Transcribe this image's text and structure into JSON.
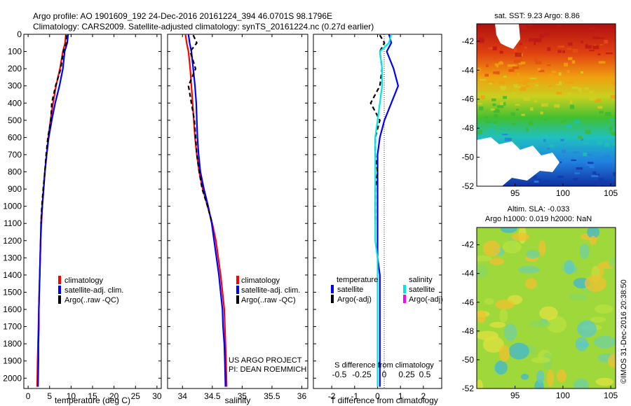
{
  "header": {
    "line1": "Argo profile: AO 1901609_192 24-Dec-2016 20161224_394 46.0701S 98.1796E",
    "line2": "Climatology: CARS2009. Satellite-adjusted climatology: synTS_20161224.nc (0.27d earlier)"
  },
  "colors": {
    "climatology": "#ff0000",
    "satellite": "#0000ff",
    "argo": "#000000",
    "satellite_salinity": "#00e5e5",
    "argo_salinity_adj": "#ff00ff"
  },
  "panels": {
    "temperature": {
      "xlabel": "temperature (deg C)",
      "legend": [
        "climatology",
        "satellite-adj. clim.",
        "Argo(..raw -QC)"
      ]
    },
    "salinity": {
      "xlabel": "salinity",
      "legend": [
        "climatology",
        "satellite-adj. clim.",
        "Argo(..raw -QC)"
      ],
      "credit1": "US ARGO PROJECT",
      "credit2": "PI: DEAN ROEMMICH"
    },
    "difference": {
      "xlabel": "T difference from climatology",
      "toplabel": "S difference from climatology",
      "legend_head_t": "temperature",
      "legend_head_s": "salinity",
      "legend_t": [
        "satellite",
        "Argo(-adj)"
      ],
      "legend_s": [
        "satellite",
        "Argo(-adj)"
      ]
    }
  },
  "maps": {
    "sst_title": "sat. SST: 9.23 Argo: 8.86",
    "sla_title1": "Altim. SLA: -0.033",
    "sla_title2": "Argo h1000: 0.019 h2000: NaN",
    "lat_ticks": [
      "-42",
      "-44",
      "-46",
      "-48",
      "-50",
      "-52"
    ],
    "lon_ticks": [
      "95",
      "100",
      "105"
    ],
    "side_text": "©IMOS 31-Dec-2016 20:38:50"
  },
  "chart_data": [
    {
      "type": "line",
      "title": "",
      "xlabel": "temperature (deg C)",
      "ylabel": "",
      "xlim": [
        -1,
        31
      ],
      "ylim": [
        2060,
        0
      ],
      "y_reversed": true,
      "xticks": [
        0,
        5,
        10,
        15,
        20,
        25,
        30
      ],
      "yticks": [
        0,
        100,
        200,
        300,
        400,
        500,
        600,
        700,
        800,
        900,
        1000,
        1100,
        1200,
        1300,
        1400,
        1500,
        1600,
        1700,
        1800,
        1900,
        2000
      ],
      "series": [
        {
          "name": "climatology",
          "color": "#ff0000",
          "x": [
            8.8,
            8.6,
            8.1,
            7.4,
            6.5,
            5.8,
            5.2,
            4.7,
            4.3,
            3.9,
            3.6,
            3.3,
            3.1,
            2.9,
            2.8,
            2.7,
            2.6,
            2.5,
            2.4,
            2.3,
            2.2,
            2.1
          ],
          "y": [
            0,
            50,
            100,
            200,
            300,
            400,
            500,
            600,
            700,
            800,
            900,
            1000,
            1100,
            1200,
            1300,
            1400,
            1500,
            1600,
            1700,
            1800,
            1900,
            2050
          ]
        },
        {
          "name": "satellite-adj. clim.",
          "color": "#0000ff",
          "x": [
            9.3,
            9.1,
            8.5,
            8.1,
            7.3,
            6.3,
            5.5,
            4.8,
            4.3,
            3.9,
            3.6,
            3.3,
            3.0,
            2.9,
            2.8,
            2.7,
            2.6,
            2.5,
            2.5,
            2.4,
            2.4,
            2.3
          ],
          "y": [
            0,
            50,
            100,
            200,
            300,
            400,
            500,
            600,
            700,
            800,
            900,
            1000,
            1100,
            1200,
            1300,
            1400,
            1500,
            1600,
            1700,
            1800,
            1900,
            2050
          ]
        },
        {
          "name": "Argo(..raw -QC)",
          "color": "#000000",
          "dashed": true,
          "x": [
            8.9,
            8.9,
            8.2,
            7.6,
            6.4,
            5.5,
            5.3,
            4.6,
            4.2,
            3.9,
            3.5,
            3.2,
            3.0
          ],
          "y": [
            5,
            50,
            100,
            200,
            300,
            400,
            500,
            600,
            700,
            800,
            900,
            1000,
            1100
          ]
        }
      ]
    },
    {
      "type": "line",
      "title": "",
      "xlabel": "salinity",
      "ylabel": "",
      "xlim": [
        33.75,
        36.1
      ],
      "ylim": [
        2060,
        0
      ],
      "y_reversed": true,
      "xticks": [
        34,
        34.5,
        35,
        35.5,
        36
      ],
      "series": [
        {
          "name": "climatology",
          "color": "#ff0000",
          "x": [
            34.05,
            34.07,
            34.1,
            34.13,
            34.15,
            34.17,
            34.19,
            34.21,
            34.24,
            34.28,
            34.34,
            34.42,
            34.5,
            34.56,
            34.6,
            34.64,
            34.67,
            34.7,
            34.71,
            34.72,
            34.73,
            34.74
          ],
          "y": [
            0,
            50,
            100,
            200,
            300,
            400,
            500,
            600,
            700,
            800,
            900,
            1000,
            1100,
            1200,
            1300,
            1400,
            1500,
            1600,
            1700,
            1800,
            1900,
            2050
          ]
        },
        {
          "name": "satellite-adj. clim.",
          "color": "#0000ff",
          "x": [
            34.1,
            34.12,
            34.15,
            34.18,
            34.21,
            34.23,
            34.24,
            34.25,
            34.27,
            34.3,
            34.36,
            34.43,
            34.49,
            34.53,
            34.57,
            34.61,
            34.64,
            34.67,
            34.68,
            34.7,
            34.71,
            34.72
          ],
          "y": [
            0,
            50,
            100,
            200,
            300,
            400,
            500,
            600,
            700,
            800,
            900,
            1000,
            1100,
            1200,
            1300,
            1400,
            1500,
            1600,
            1700,
            1800,
            1900,
            2050
          ]
        },
        {
          "name": "Argo(..raw -QC)",
          "color": "#000000",
          "dashed": true,
          "x": [
            34.18,
            34.24,
            34.13,
            34.22,
            34.1,
            34.15,
            34.2,
            34.22,
            34.24,
            34.28,
            34.33,
            34.42,
            34.5
          ],
          "y": [
            5,
            50,
            100,
            200,
            300,
            400,
            500,
            600,
            700,
            800,
            900,
            1000,
            1100
          ]
        }
      ]
    },
    {
      "type": "line",
      "title": "",
      "xlabel": "T difference from climatology",
      "ylabel": "",
      "xlim": [
        -2.8,
        2.8
      ],
      "ylim": [
        2060,
        0
      ],
      "y_reversed": true,
      "xticks": [
        -2,
        -1,
        0,
        1,
        2
      ],
      "top_xlabel": "S difference from climatology",
      "top_xticks": [
        "-0.5",
        "-0.25",
        "0",
        "0.25",
        "0.5"
      ],
      "series": [
        {
          "name": "temperature satellite",
          "color": "#0000ff",
          "x": [
            0.5,
            0.6,
            0.4,
            0.7,
            0.9,
            0.6,
            0.3,
            0.1,
            0.0,
            0.0,
            0.0,
            0.0,
            0.0,
            0.0,
            0.0,
            0.1,
            0.1,
            0.1,
            0.1,
            0.1,
            0.1,
            0.1
          ],
          "y": [
            0,
            50,
            100,
            200,
            300,
            400,
            500,
            600,
            700,
            800,
            900,
            1000,
            1100,
            1200,
            1300,
            1400,
            1500,
            1600,
            1700,
            1800,
            1900,
            2050
          ]
        },
        {
          "name": "temperature Argo(-adj)",
          "color": "#000000",
          "dashed": true,
          "x": [
            0.1,
            0.3,
            0.1,
            0.2,
            0.1,
            -0.3,
            0.1,
            -0.1,
            -0.1,
            0.0,
            -0.1,
            -0.1,
            -0.1
          ],
          "y": [
            5,
            50,
            100,
            200,
            300,
            400,
            500,
            600,
            700,
            800,
            900,
            1000,
            1100
          ]
        },
        {
          "name": "salinity satellite",
          "color": "#00e5e5",
          "x": [
            0.6,
            0.5,
            0.1,
            0.2,
            0.2,
            0.1,
            0.0,
            -0.1,
            -0.1,
            -0.1,
            -0.1,
            -0.1,
            -0.1,
            -0.1,
            0.0,
            0.0,
            0.0,
            0.0,
            0.0,
            0.0,
            0.0,
            0.0
          ],
          "y": [
            0,
            50,
            100,
            200,
            300,
            400,
            500,
            600,
            700,
            800,
            900,
            1000,
            1100,
            1200,
            1300,
            1400,
            1500,
            1600,
            1700,
            1800,
            1900,
            2050
          ]
        }
      ]
    },
    {
      "type": "heatmap",
      "title": "sat. SST: 9.23 Argo: 8.86",
      "xlim": [
        91,
        105.5
      ],
      "ylim": [
        -52,
        -40.5
      ],
      "xticks": [
        95,
        100,
        105
      ],
      "yticks": [
        -42,
        -44,
        -46,
        -48,
        -50,
        -52
      ]
    },
    {
      "type": "heatmap",
      "title": "Altim. SLA: -0.033 / Argo h1000: 0.019 h2000: NaN",
      "xlim": [
        91,
        105.5
      ],
      "ylim": [
        -52,
        -40.5
      ],
      "xticks": [
        95,
        100,
        105
      ],
      "yticks": [
        -42,
        -44,
        -46,
        -48,
        -50,
        -52
      ]
    }
  ]
}
